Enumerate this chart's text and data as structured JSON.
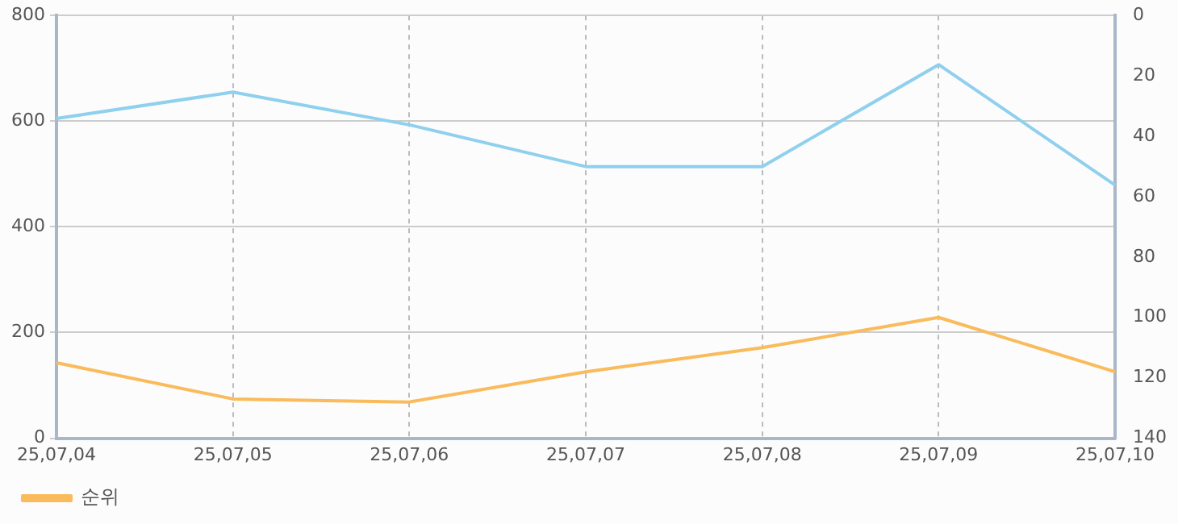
{
  "chart_data": {
    "type": "line",
    "categories": [
      "25,07,04",
      "25,07,05",
      "25,07,06",
      "25,07,07",
      "25,07,08",
      "25,07,09",
      "25,07,10"
    ],
    "series": [
      {
        "color": "#8fd0ee",
        "values": [
          605,
          655,
          593,
          514,
          514,
          707,
          479
        ]
      },
      {
        "name": "순위",
        "color": "#f9bb5b",
        "axis": "y2",
        "values": [
          115,
          127,
          128,
          118,
          110,
          100,
          118
        ]
      }
    ],
    "ylim": [
      0,
      800
    ],
    "yticks": [
      0,
      200,
      400,
      600,
      800
    ],
    "y2lim": [
      140,
      0
    ],
    "y2ticks": [
      0,
      20,
      40,
      60,
      80,
      100,
      120,
      140
    ],
    "grid": true,
    "legend": "bottom left",
    "marker": "none",
    "line_style": "solid"
  }
}
